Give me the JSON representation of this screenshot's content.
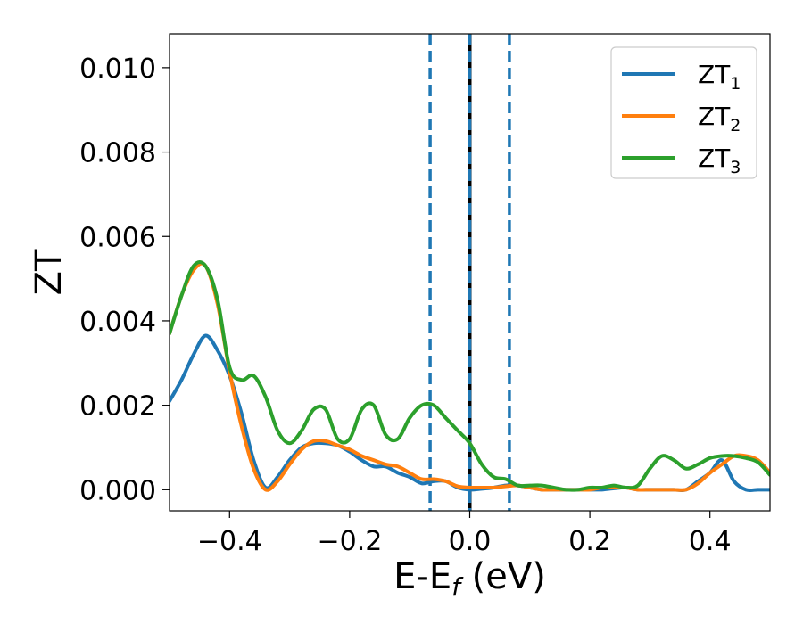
{
  "chart_data": {
    "type": "line",
    "xlabel": "E-E",
    "xlabel_sub": "f",
    "xlabel_unit": " (eV)",
    "ylabel": "ZT",
    "xlim": [
      -0.5,
      0.5
    ],
    "ylim": [
      -0.0005,
      0.0108
    ],
    "xticks": [
      -0.4,
      -0.2,
      0.0,
      0.2,
      0.4
    ],
    "xtick_labels": [
      "−0.4",
      "−0.2",
      "0.0",
      "0.2",
      "0.4"
    ],
    "yticks": [
      0.0,
      0.002,
      0.004,
      0.006,
      0.008,
      0.01
    ],
    "ytick_labels": [
      "0.000",
      "0.002",
      "0.004",
      "0.006",
      "0.008",
      "0.010"
    ],
    "legend_position": "top-right",
    "vertical_lines": [
      {
        "x": 0.0,
        "color": "#000000",
        "style": "solid"
      },
      {
        "x": -0.066,
        "color": "#1f77b4",
        "style": "dashed"
      },
      {
        "x": 0.0,
        "color": "#1f77b4",
        "style": "dashed"
      },
      {
        "x": 0.066,
        "color": "#1f77b4",
        "style": "dashed"
      }
    ],
    "series": [
      {
        "name": "ZT",
        "sub": "1",
        "color": "#1f77b4",
        "x": [
          -0.5,
          -0.48,
          -0.46,
          -0.44,
          -0.42,
          -0.4,
          -0.38,
          -0.36,
          -0.34,
          -0.32,
          -0.3,
          -0.28,
          -0.26,
          -0.24,
          -0.22,
          -0.2,
          -0.18,
          -0.16,
          -0.14,
          -0.12,
          -0.1,
          -0.08,
          -0.06,
          -0.04,
          -0.02,
          0.0,
          0.02,
          0.04,
          0.06,
          0.08,
          0.1,
          0.12,
          0.14,
          0.16,
          0.18,
          0.2,
          0.22,
          0.24,
          0.26,
          0.28,
          0.3,
          0.32,
          0.34,
          0.36,
          0.38,
          0.4,
          0.42,
          0.44,
          0.46,
          0.48,
          0.5
        ],
        "values": [
          0.0021,
          0.0026,
          0.0032,
          0.00365,
          0.0033,
          0.0027,
          0.0018,
          0.0007,
          5e-05,
          0.0003,
          0.0007,
          0.001,
          0.0011,
          0.0011,
          0.00105,
          0.0009,
          0.0007,
          0.00055,
          0.00055,
          0.0004,
          0.0003,
          0.00015,
          0.0002,
          0.0002,
          5e-05,
          0.0,
          2e-05,
          5e-05,
          0.0001,
          0.0001,
          5e-05,
          0.0,
          0.0,
          0.0,
          0.0,
          0.0,
          0.0,
          3e-05,
          5e-05,
          0.0,
          0.0,
          0.0,
          0.0,
          0.0,
          0.0002,
          0.0004,
          0.0007,
          0.0002,
          0.0,
          0.0,
          0.0
        ]
      },
      {
        "name": "ZT",
        "sub": "2",
        "color": "#ff7f0e",
        "x": [
          -0.5,
          -0.48,
          -0.46,
          -0.44,
          -0.42,
          -0.4,
          -0.38,
          -0.36,
          -0.34,
          -0.32,
          -0.3,
          -0.28,
          -0.26,
          -0.24,
          -0.22,
          -0.2,
          -0.18,
          -0.16,
          -0.14,
          -0.12,
          -0.1,
          -0.08,
          -0.06,
          -0.04,
          -0.02,
          0.0,
          0.02,
          0.04,
          0.06,
          0.08,
          0.1,
          0.12,
          0.14,
          0.16,
          0.18,
          0.2,
          0.22,
          0.24,
          0.26,
          0.28,
          0.3,
          0.32,
          0.34,
          0.36,
          0.38,
          0.4,
          0.42,
          0.44,
          0.46,
          0.48,
          0.5
        ],
        "values": [
          0.0037,
          0.0046,
          0.0052,
          0.0053,
          0.0044,
          0.0028,
          0.0015,
          0.0005,
          0.0,
          0.0002,
          0.0006,
          0.00095,
          0.00115,
          0.00115,
          0.00105,
          0.00095,
          0.0008,
          0.0007,
          0.0006,
          0.00055,
          0.0004,
          0.00025,
          0.00025,
          0.0002,
          8e-05,
          5e-05,
          5e-05,
          5e-05,
          8e-05,
          0.0001,
          5e-05,
          0.0,
          0.0,
          0.0,
          0.0,
          0.0,
          5e-05,
          5e-05,
          5e-05,
          0.0,
          0.0,
          0.0,
          0.0,
          0.0,
          0.00015,
          0.0004,
          0.0006,
          0.0008,
          0.0008,
          0.0007,
          0.0004
        ]
      },
      {
        "name": "ZT",
        "sub": "3",
        "color": "#2ca02c",
        "x": [
          -0.5,
          -0.48,
          -0.46,
          -0.44,
          -0.42,
          -0.4,
          -0.38,
          -0.36,
          -0.34,
          -0.32,
          -0.3,
          -0.28,
          -0.26,
          -0.24,
          -0.22,
          -0.2,
          -0.18,
          -0.16,
          -0.14,
          -0.12,
          -0.1,
          -0.08,
          -0.06,
          -0.04,
          -0.02,
          0.0,
          0.02,
          0.04,
          0.06,
          0.08,
          0.1,
          0.12,
          0.14,
          0.16,
          0.18,
          0.2,
          0.22,
          0.24,
          0.26,
          0.28,
          0.3,
          0.32,
          0.34,
          0.36,
          0.38,
          0.4,
          0.42,
          0.44,
          0.46,
          0.48,
          0.5
        ],
        "values": [
          0.0037,
          0.0046,
          0.0053,
          0.0053,
          0.0045,
          0.0029,
          0.0026,
          0.0027,
          0.0022,
          0.0014,
          0.0011,
          0.0014,
          0.0019,
          0.0019,
          0.0012,
          0.0012,
          0.0019,
          0.002,
          0.0013,
          0.0012,
          0.0017,
          0.002,
          0.002,
          0.0017,
          0.0014,
          0.0011,
          0.0006,
          0.0003,
          0.00025,
          0.0001,
          0.0001,
          0.0001,
          5e-05,
          0.0,
          0.0,
          5e-05,
          5e-05,
          0.0001,
          5e-05,
          0.0001,
          0.0005,
          0.0008,
          0.0007,
          0.0005,
          0.0006,
          0.00075,
          0.0008,
          0.0008,
          0.00075,
          0.00065,
          0.00035
        ]
      }
    ]
  }
}
